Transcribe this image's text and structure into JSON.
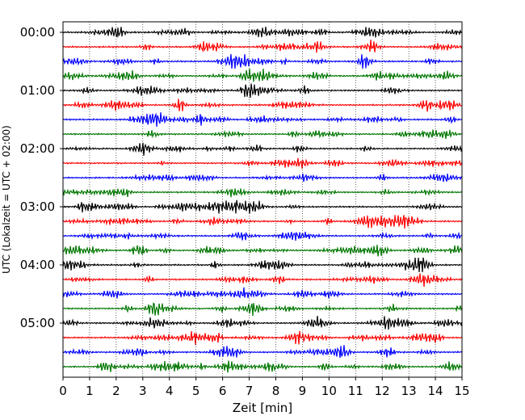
{
  "chart_data": {
    "type": "line",
    "title": "",
    "xlabel": "Zeit  [min]",
    "ylabel": "UTC (Lokalzeit = UTC + 02:00)",
    "xlim": [
      0,
      15
    ],
    "x_ticks": [
      "0",
      "1",
      "2",
      "3",
      "4",
      "5",
      "6",
      "7",
      "8",
      "9",
      "10",
      "11",
      "12",
      "13",
      "14",
      "15"
    ],
    "y_ticks": [
      "00:00",
      "01:00",
      "02:00",
      "03:00",
      "04:00",
      "05:00"
    ],
    "grid": "vertical dotted at each minute",
    "trace_interval_minutes": 15,
    "trace_count": 24,
    "trace_colors": [
      "#000000",
      "#ff0000",
      "#0000ff",
      "#007700"
    ],
    "trace_start_times": [
      "00:00",
      "00:15",
      "00:30",
      "00:45",
      "01:00",
      "01:15",
      "01:30",
      "01:45",
      "02:00",
      "02:15",
      "02:30",
      "02:45",
      "03:00",
      "03:15",
      "03:30",
      "03:45",
      "04:00",
      "04:15",
      "04:30",
      "04:45",
      "05:00",
      "05:15",
      "05:30",
      "05:45"
    ]
  }
}
